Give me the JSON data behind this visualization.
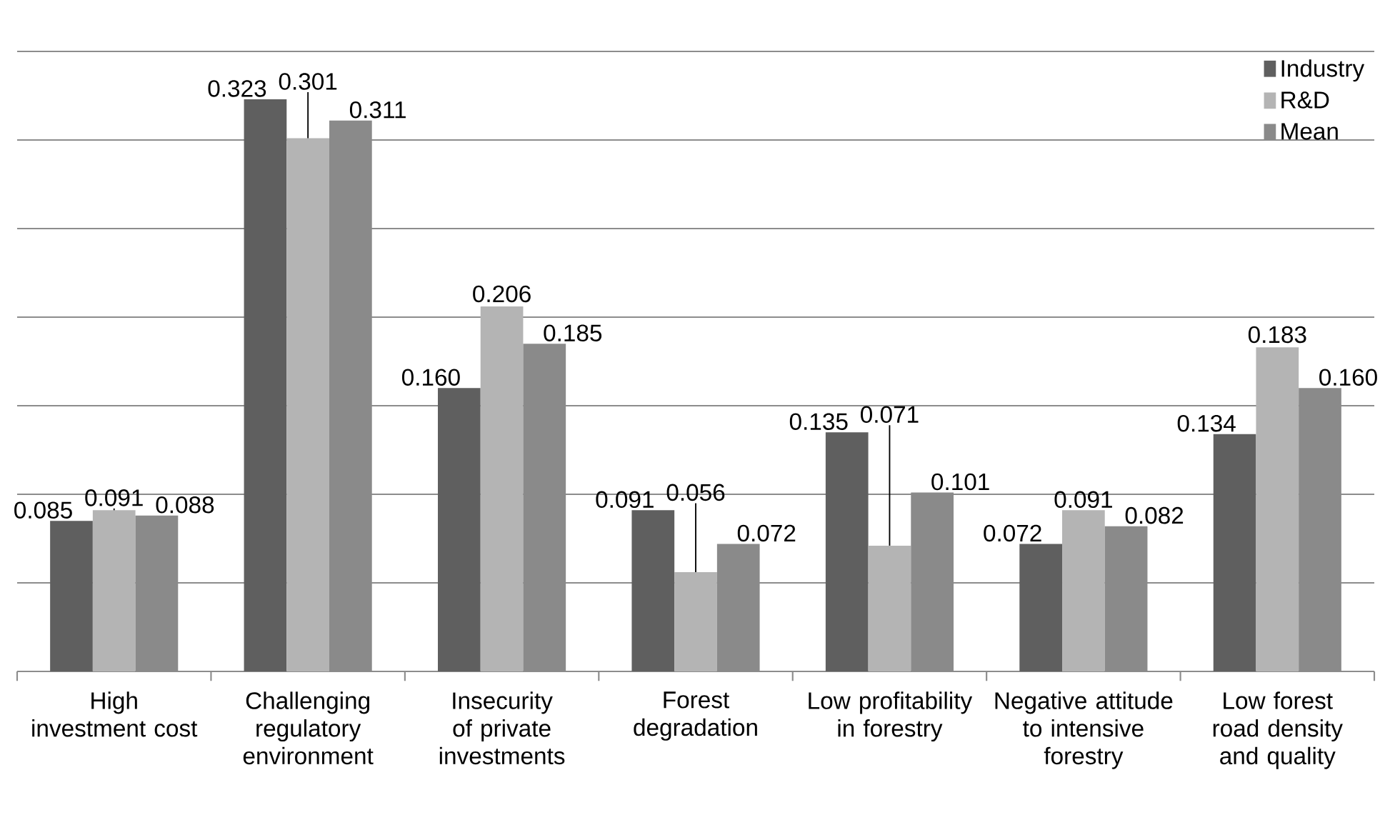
{
  "chart_data": {
    "type": "bar",
    "categories": [
      "High investment cost",
      "Challenging regulatory environment",
      "Insecurity of private investments",
      "Forest degradation",
      "Low profitability in forestry",
      "Negative attitude to intensive forestry",
      "Low forest road density and quality"
    ],
    "series": [
      {
        "name": "Industry",
        "color": "#5f5f5f",
        "values": [
          0.085,
          0.323,
          0.16,
          0.091,
          0.135,
          0.072,
          0.134
        ],
        "value_labels": [
          "0.085",
          "0.323",
          "0.160",
          "0.091",
          "0.135",
          "0.072",
          "0.134"
        ]
      },
      {
        "name": "R&D",
        "color": "#b4b4b4",
        "values": [
          0.091,
          0.301,
          0.206,
          0.056,
          0.071,
          0.091,
          0.183
        ],
        "value_labels": [
          "0.091",
          "0.301",
          "0.206",
          "0.056",
          "0.071",
          "0.091",
          "0.183"
        ]
      },
      {
        "name": "Mean",
        "color": "#8a8a8a",
        "values": [
          0.088,
          0.311,
          0.185,
          0.072,
          0.101,
          0.082,
          0.16
        ],
        "value_labels": [
          "0.088",
          "0.311",
          "0.185",
          "0.072",
          "0.101",
          "0.082",
          "0.160"
        ]
      }
    ],
    "ylim": [
      0,
      0.35
    ],
    "yticks": [
      {
        "value": 0,
        "label": null
      },
      {
        "value": 0.05,
        "label": null
      },
      {
        "value": 0.1,
        "label": null
      },
      {
        "value": 0.15,
        "label": null
      },
      {
        "value": 0.2,
        "label": null
      },
      {
        "value": 0.25,
        "label": null
      },
      {
        "value": 0.3,
        "label": null
      },
      {
        "value": 0.35,
        "label": null
      }
    ],
    "grid": "y",
    "legend": "top right"
  }
}
